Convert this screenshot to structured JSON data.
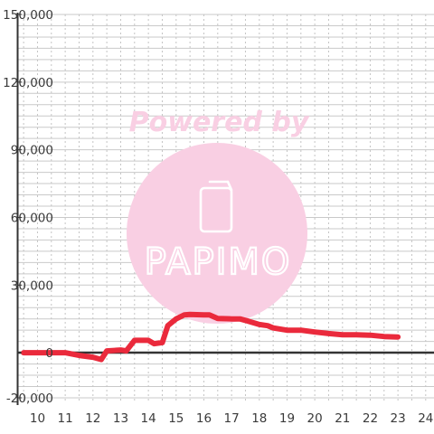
{
  "chart_data": {
    "type": "line",
    "x": [
      9.5,
      10,
      10.5,
      11,
      11.5,
      12,
      12.3,
      12.5,
      13,
      13.2,
      13.5,
      14,
      14.2,
      14.5,
      14.7,
      15,
      15.3,
      15.5,
      16,
      16.2,
      16.5,
      17,
      17.3,
      17.6,
      18,
      18.3,
      18.5,
      19,
      19.5,
      20,
      20.5,
      21,
      21.5,
      22,
      22.5,
      23
    ],
    "series": [
      {
        "values": [
          0,
          0,
          0,
          0,
          -1200,
          -2000,
          -3000,
          800,
          1200,
          800,
          5500,
          5500,
          4000,
          4500,
          12000,
          15000,
          16800,
          17000,
          16800,
          16800,
          15200,
          15000,
          15000,
          14000,
          12500,
          12000,
          11000,
          10000,
          10000,
          9200,
          8500,
          8000,
          8000,
          7800,
          7200,
          7000
        ]
      }
    ],
    "xticks": [
      "10",
      "11",
      "12",
      "13",
      "14",
      "15",
      "16",
      "17",
      "18",
      "19",
      "20",
      "21",
      "22",
      "23",
      "24"
    ],
    "yticks": [
      "150,000",
      "120,000",
      "90,000",
      "60,000",
      "30,000",
      "0",
      "-20,000"
    ],
    "ylim": [
      -20000,
      150000
    ],
    "xlim": [
      9.3,
      24.3
    ],
    "grid": true,
    "line_color": "#ea2a3c",
    "watermark": {
      "top_text": "Powered by",
      "brand": "PAPIMO",
      "color": "#f9cfe3"
    }
  }
}
